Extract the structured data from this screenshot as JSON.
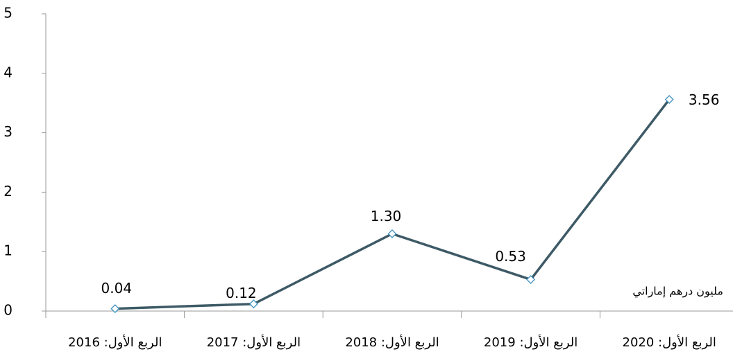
{
  "chart_data": {
    "type": "line",
    "categories": [
      "الربع الأول: 2016",
      "الربع الأول: 2017",
      "الربع الأول: 2018",
      "الربع الأول: 2019",
      "الربع الأول: 2020"
    ],
    "series": [
      {
        "color": "#3d5a66",
        "marker_color": "#3a8fbf",
        "values": [
          0.04,
          0.12,
          1.3,
          0.53,
          3.56
        ],
        "value_labels": [
          "0.04",
          "0.12",
          "1.30",
          "0.53",
          "3.56"
        ]
      }
    ],
    "ylim": [
      0,
      5
    ],
    "yticks": [
      0,
      1,
      2,
      3,
      4,
      5
    ],
    "annotation": "مليون درهم إماراتي"
  }
}
